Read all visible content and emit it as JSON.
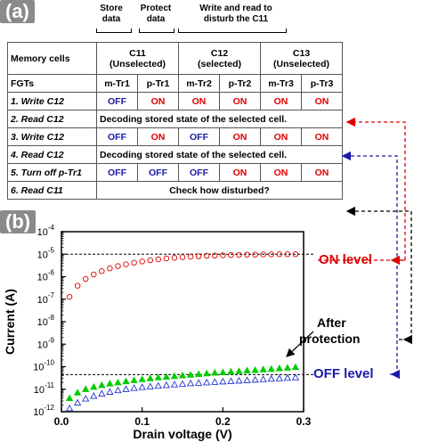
{
  "panel_a": {
    "label": "(a)",
    "headers": [
      {
        "key": "store",
        "text": "Store\ndata"
      },
      {
        "key": "protect",
        "text": "Protect\ndata"
      },
      {
        "key": "write_read",
        "text": "Write and read to\ndisturb the C11"
      }
    ],
    "table": {
      "corner": "Memory cells",
      "cells": [
        {
          "name": "C11",
          "state": "(Unselected)"
        },
        {
          "name": "C12",
          "state": "(selected)"
        },
        {
          "name": "C13",
          "state": "(Unselected)"
        }
      ],
      "fgt_label": "FGTs",
      "fgts": [
        "m-Tr1",
        "p-Tr1",
        "m-Tr2",
        "p-Tr2",
        "m-Tr3",
        "p-Tr3"
      ],
      "rows": [
        {
          "step": "1. Write C12",
          "values": [
            "OFF",
            "ON",
            "ON",
            "ON",
            "ON",
            "ON"
          ]
        },
        {
          "step": "2. Read C12",
          "span": "Decoding stored state of the selected cell."
        },
        {
          "step": "3. Write C12",
          "values": [
            "OFF",
            "ON",
            "OFF",
            "ON",
            "ON",
            "ON"
          ]
        },
        {
          "step": "4.  Read C12",
          "span": "Decoding stored state of the selected cell."
        },
        {
          "step": "5. Turn off p-Tr1",
          "values": [
            "OFF",
            "OFF",
            "OFF",
            "ON",
            "ON",
            "ON"
          ]
        },
        {
          "step": "6. Read C11",
          "span": "Check how disturbed?"
        }
      ]
    },
    "colors": {
      "on": "#e00000",
      "off": "#1a1aa8"
    }
  },
  "panel_b": {
    "label": "(b)",
    "annotations": {
      "on_level": "ON level",
      "off_level": "OFF level",
      "after": "After",
      "protection": "protection"
    }
  },
  "chart_data": {
    "type": "scatter",
    "xlabel": "Drain voltage (V)",
    "ylabel": "Current (A)",
    "xlim": [
      0.0,
      0.3
    ],
    "ylim_log10": [
      -12,
      -4
    ],
    "y_scale": "log",
    "x_ticks": [
      "0.0",
      "0.1",
      "0.2",
      "0.3"
    ],
    "y_ticks": [
      {
        "base": "10",
        "exp": "-4",
        "log": -4
      },
      {
        "base": "10",
        "exp": "-5",
        "log": -5
      },
      {
        "base": "10",
        "exp": "-6",
        "log": -6
      },
      {
        "base": "10",
        "exp": "-7",
        "log": -7
      },
      {
        "base": "10",
        "exp": "-8",
        "log": -8
      },
      {
        "base": "10",
        "exp": "-9",
        "log": -9
      },
      {
        "base": "10",
        "exp": "-10",
        "log": -10
      },
      {
        "base": "10",
        "exp": "-11",
        "log": -11
      },
      {
        "base": "10",
        "exp": "-12",
        "log": -12
      }
    ],
    "reference_lines_log10": [
      -5,
      -10.35
    ],
    "series": [
      {
        "marker": "circle-open",
        "color": "#e00000",
        "x": [
          0.01,
          0.02,
          0.03,
          0.04,
          0.05,
          0.06,
          0.07,
          0.08,
          0.09,
          0.1,
          0.11,
          0.12,
          0.13,
          0.14,
          0.15,
          0.16,
          0.17,
          0.18,
          0.19,
          0.2,
          0.21,
          0.22,
          0.23,
          0.24,
          0.25,
          0.26,
          0.27,
          0.28,
          0.29
        ],
        "log10_y": [
          -6.9,
          -6.4,
          -6.1,
          -5.9,
          -5.75,
          -5.63,
          -5.53,
          -5.45,
          -5.38,
          -5.32,
          -5.27,
          -5.23,
          -5.19,
          -5.16,
          -5.13,
          -5.11,
          -5.09,
          -5.07,
          -5.06,
          -5.05,
          -5.04,
          -5.03,
          -5.02,
          -5.02,
          -5.01,
          -5.01,
          -5.0,
          -5.0,
          -5.0
        ]
      },
      {
        "marker": "triangle-filled",
        "color": "#00cc00",
        "x": [
          0.01,
          0.02,
          0.03,
          0.04,
          0.05,
          0.06,
          0.07,
          0.08,
          0.09,
          0.1,
          0.11,
          0.12,
          0.13,
          0.14,
          0.15,
          0.16,
          0.17,
          0.18,
          0.19,
          0.2,
          0.21,
          0.22,
          0.23,
          0.24,
          0.25,
          0.26,
          0.27,
          0.28,
          0.29
        ],
        "log10_y": [
          -11.4,
          -11.15,
          -11.0,
          -10.9,
          -10.82,
          -10.75,
          -10.7,
          -10.65,
          -10.6,
          -10.56,
          -10.52,
          -10.48,
          -10.45,
          -10.42,
          -10.39,
          -10.36,
          -10.33,
          -10.3,
          -10.27,
          -10.25,
          -10.22,
          -10.2,
          -10.17,
          -10.15,
          -10.12,
          -10.1,
          -10.07,
          -10.05,
          -10.02
        ]
      },
      {
        "marker": "triangle-open",
        "color": "#2233cc",
        "x": [
          0.01,
          0.02,
          0.03,
          0.04,
          0.05,
          0.06,
          0.07,
          0.08,
          0.09,
          0.1,
          0.11,
          0.12,
          0.13,
          0.14,
          0.15,
          0.16,
          0.17,
          0.18,
          0.19,
          0.2,
          0.21,
          0.22,
          0.23,
          0.24,
          0.25,
          0.26,
          0.27,
          0.28,
          0.29
        ],
        "log10_y": [
          -11.85,
          -11.6,
          -11.42,
          -11.3,
          -11.2,
          -11.12,
          -11.05,
          -11.0,
          -10.95,
          -10.91,
          -10.88,
          -10.85,
          -10.82,
          -10.79,
          -10.77,
          -10.74,
          -10.72,
          -10.7,
          -10.68,
          -10.66,
          -10.64,
          -10.62,
          -10.6,
          -10.58,
          -10.56,
          -10.54,
          -10.52,
          -10.5,
          -10.48
        ]
      }
    ]
  }
}
